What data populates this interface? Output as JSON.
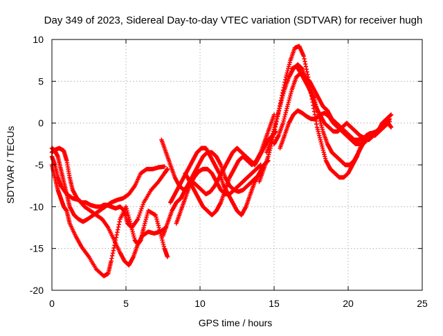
{
  "chart_data": {
    "type": "scatter",
    "title": "Day 349 of 2023, Sidereal Day-to-day VTEC variation (SDTVAR) for receiver hugh",
    "xlabel": "GPS time / hours",
    "ylabel": "SDTVAR / TECUs",
    "xlim": [
      0,
      25
    ],
    "ylim": [
      -20,
      10
    ],
    "xticks": [
      0,
      5,
      10,
      15,
      20,
      25
    ],
    "yticks": [
      -20,
      -15,
      -10,
      -5,
      0,
      5,
      10
    ],
    "xtick_labels": [
      "0",
      "5",
      "10",
      "15",
      "20",
      "25"
    ],
    "ytick_labels": [
      "-20",
      "-15",
      "-10",
      "-5",
      "0",
      "5",
      "10"
    ],
    "grid": true,
    "legend": "none",
    "marker": "+",
    "color": "#ff0000",
    "series": [
      {
        "x": [
          0.0,
          0.2,
          0.4,
          0.6,
          0.8,
          1.0,
          1.2,
          1.6,
          2.0,
          2.5,
          3.0,
          3.5,
          3.8,
          4.0,
          4.3,
          4.6,
          5.0,
          5.3,
          5.6,
          5.8,
          6.0,
          6.2,
          6.5,
          7.0,
          7.3,
          7.6,
          7.8
        ],
        "y": [
          -5.0,
          -6.5,
          -8.0,
          -9.0,
          -10.0,
          -10.5,
          -12.0,
          -13.5,
          -14.8,
          -16.0,
          -17.5,
          -18.3,
          -18.0,
          -16.5,
          -14.0,
          -11.5,
          -10.0,
          -12.0,
          -14.0,
          -14.5,
          -14.0,
          -12.5,
          -10.5,
          -11.0,
          -13.0,
          -15.0,
          -16.0
        ]
      },
      {
        "x": [
          0.0,
          0.2,
          0.5,
          0.8,
          1.0,
          1.2,
          1.4,
          1.7,
          2.0,
          2.3,
          2.6,
          3.0,
          3.3,
          3.5,
          3.7,
          4.0,
          4.3,
          4.6,
          4.9,
          5.1,
          5.4,
          5.8,
          6.2,
          6.7,
          7.2,
          7.6,
          7.8
        ],
        "y": [
          -3.5,
          -3.2,
          -3.0,
          -3.3,
          -4.5,
          -6.5,
          -8.0,
          -9.0,
          -9.5,
          -9.5,
          -9.8,
          -10.0,
          -10.0,
          -9.8,
          -9.8,
          -10.0,
          -10.2,
          -10.0,
          -10.5,
          -12.0,
          -12.5,
          -11.5,
          -9.5,
          -8.0,
          -7.0,
          -6.0,
          -5.5
        ]
      },
      {
        "x": [
          0.0,
          0.2,
          0.4,
          0.6,
          1.0,
          1.4,
          1.8,
          2.2,
          2.6,
          3.0,
          3.4,
          3.8,
          4.2,
          4.6,
          4.9,
          5.2,
          5.5,
          5.8,
          6.1,
          6.5,
          6.9,
          7.3,
          7.7
        ],
        "y": [
          -4.0,
          -5.0,
          -6.5,
          -7.5,
          -8.5,
          -9.0,
          -9.2,
          -10.0,
          -10.5,
          -11.0,
          -11.5,
          -12.5,
          -14.0,
          -15.5,
          -16.5,
          -17.0,
          -16.0,
          -14.5,
          -13.5,
          -13.0,
          -13.2,
          -13.0,
          -12.5
        ]
      },
      {
        "x": [
          0.0,
          0.2,
          0.4,
          0.6,
          0.8,
          1.0,
          1.2,
          1.5,
          1.8,
          2.1,
          2.4,
          2.8,
          3.2,
          3.6,
          4.0,
          4.4,
          4.8,
          5.2,
          5.6,
          6.0,
          6.4,
          6.8,
          7.2,
          7.6
        ],
        "y": [
          -3.0,
          -3.3,
          -4.0,
          -5.5,
          -7.0,
          -8.5,
          -10.0,
          -11.0,
          -11.5,
          -11.8,
          -11.5,
          -11.0,
          -10.5,
          -10.0,
          -9.5,
          -9.2,
          -9.0,
          -8.5,
          -7.5,
          -6.0,
          -5.5,
          -5.5,
          -5.3,
          -5.2
        ]
      },
      {
        "x": [
          7.4,
          7.7,
          8.0,
          8.3,
          8.6,
          8.9,
          9.2,
          9.5,
          9.8,
          10.1,
          10.4,
          10.7,
          11.0,
          11.3,
          11.6,
          11.9,
          12.2,
          12.5,
          12.8,
          13.1,
          13.4,
          13.7,
          14.0,
          14.3,
          14.6,
          14.9,
          15.1
        ],
        "y": [
          -2.0,
          -3.5,
          -5.0,
          -6.5,
          -7.5,
          -8.0,
          -7.5,
          -7.0,
          -7.5,
          -8.0,
          -8.5,
          -8.2,
          -7.5,
          -6.5,
          -5.5,
          -4.5,
          -3.5,
          -3.0,
          -3.5,
          -4.0,
          -4.5,
          -5.0,
          -4.0,
          -3.0,
          -2.0,
          -1.5,
          -1.0
        ]
      },
      {
        "x": [
          7.5,
          7.8,
          8.1,
          8.4,
          8.7,
          9.0,
          9.3,
          9.6,
          9.9,
          10.2,
          10.5,
          10.8,
          11.1,
          11.4,
          11.7,
          12.0,
          12.3,
          12.6,
          12.9,
          13.2,
          13.5,
          13.8,
          14.1
        ],
        "y": [
          -13.5,
          -12.0,
          -10.5,
          -9.5,
          -9.0,
          -8.0,
          -7.0,
          -6.0,
          -5.0,
          -4.0,
          -3.5,
          -3.5,
          -4.0,
          -5.0,
          -6.5,
          -7.5,
          -8.0,
          -8.2,
          -8.0,
          -7.5,
          -7.0,
          -6.5,
          -6.0
        ]
      },
      {
        "x": [
          8.0,
          8.3,
          8.6,
          8.9,
          9.2,
          9.5,
          9.8,
          10.1,
          10.4,
          10.7,
          11.0,
          11.3,
          11.6,
          11.9,
          12.2,
          12.5,
          12.8,
          13.1,
          13.4,
          13.7,
          14.0,
          14.3,
          14.6
        ],
        "y": [
          -9.5,
          -8.5,
          -7.5,
          -6.5,
          -5.5,
          -4.5,
          -3.5,
          -3.0,
          -3.0,
          -4.0,
          -5.0,
          -6.0,
          -7.5,
          -8.5,
          -9.5,
          -10.5,
          -11.0,
          -10.0,
          -8.5,
          -7.0,
          -6.0,
          -5.0,
          -4.5
        ]
      },
      {
        "x": [
          8.4,
          8.7,
          9.0,
          9.3,
          9.6,
          9.9,
          10.2,
          10.5,
          10.8,
          11.1,
          11.4,
          11.7,
          12.0,
          12.3,
          12.6,
          12.9,
          13.2,
          13.5,
          13.8,
          14.1
        ],
        "y": [
          -12.0,
          -10.5,
          -9.0,
          -7.5,
          -6.5,
          -5.8,
          -5.5,
          -5.5,
          -6.0,
          -7.0,
          -8.0,
          -8.5,
          -8.5,
          -8.0,
          -7.5,
          -7.0,
          -6.5,
          -6.0,
          -5.5,
          -5.0
        ]
      },
      {
        "x": [
          9.0,
          9.3,
          9.6,
          9.9,
          10.2,
          10.5,
          10.8,
          11.1,
          11.4,
          11.7,
          12.0,
          12.3,
          12.6,
          12.9,
          13.2,
          13.5,
          13.8,
          14.1,
          14.4,
          14.7,
          15.0
        ],
        "y": [
          -6.0,
          -7.0,
          -8.0,
          -9.0,
          -10.0,
          -10.5,
          -11.0,
          -10.5,
          -9.5,
          -8.0,
          -6.5,
          -5.5,
          -4.5,
          -4.0,
          -4.5,
          -5.0,
          -4.5,
          -3.5,
          -2.0,
          -0.5,
          1.0
        ]
      },
      {
        "x": [
          14.0,
          14.3,
          14.6,
          14.9,
          15.2,
          15.5,
          15.8,
          16.1,
          16.4,
          16.7,
          17.0,
          17.3,
          17.6,
          17.9,
          18.2,
          18.5,
          18.8,
          19.1,
          19.4,
          19.7,
          20.0,
          20.3,
          20.6,
          20.9,
          21.2,
          21.5,
          21.8,
          22.1,
          22.4,
          22.7,
          22.9
        ],
        "y": [
          -7.0,
          -5.5,
          -4.0,
          -2.0,
          0.5,
          3.0,
          5.5,
          7.5,
          9.0,
          9.2,
          8.0,
          5.5,
          2.5,
          -0.5,
          -2.5,
          -4.5,
          -5.5,
          -6.0,
          -6.5,
          -6.5,
          -6.0,
          -5.0,
          -4.0,
          -2.5,
          -1.5,
          -1.2,
          -1.5,
          -1.0,
          -0.5,
          0.0,
          -0.5
        ]
      },
      {
        "x": [
          14.5,
          14.8,
          15.1,
          15.4,
          15.7,
          16.0,
          16.3,
          16.6,
          16.9,
          17.2,
          17.5,
          17.8,
          18.1,
          18.4,
          18.7,
          19.0,
          19.3,
          19.6,
          19.9,
          20.2,
          20.5,
          20.8,
          21.1,
          21.4,
          21.7,
          22.0,
          22.3,
          22.6,
          22.9
        ],
        "y": [
          -3.5,
          -2.0,
          0.0,
          2.0,
          4.0,
          5.5,
          6.5,
          7.0,
          6.5,
          5.0,
          3.5,
          2.0,
          1.0,
          0.0,
          -0.5,
          -1.0,
          -1.0,
          -0.5,
          0.0,
          -0.5,
          -1.0,
          -1.5,
          -1.8,
          -2.0,
          -1.5,
          -1.0,
          0.0,
          0.5,
          1.0
        ]
      },
      {
        "x": [
          15.0,
          15.3,
          15.6,
          15.9,
          16.2,
          16.5,
          16.8,
          17.1,
          17.4,
          17.7,
          18.0,
          18.3,
          18.6,
          18.9,
          19.2,
          19.5,
          19.8,
          20.1,
          20.4,
          20.7,
          21.0,
          21.3,
          21.6,
          21.9,
          22.2,
          22.5,
          22.8
        ],
        "y": [
          -2.5,
          -1.5,
          0.0,
          2.0,
          4.0,
          5.5,
          6.0,
          5.5,
          5.0,
          4.0,
          3.0,
          2.0,
          1.5,
          0.5,
          0.0,
          -0.5,
          -1.0,
          -1.5,
          -2.0,
          -2.0,
          -1.8,
          -1.5,
          -1.2,
          -1.0,
          -0.5,
          0.0,
          0.5
        ]
      },
      {
        "x": [
          15.4,
          15.7,
          16.0,
          16.3,
          16.6,
          16.9,
          17.2,
          17.5,
          17.8,
          18.1,
          18.4,
          18.7,
          19.0,
          19.3,
          19.6,
          19.9,
          20.2,
          20.5,
          20.8,
          21.1
        ],
        "y": [
          -3.0,
          -1.5,
          0.0,
          1.0,
          1.5,
          1.2,
          0.8,
          0.5,
          0.5,
          1.0,
          1.2,
          0.8,
          0.0,
          -0.5,
          -1.0,
          -1.5,
          -2.0,
          -2.5,
          -2.5,
          -2.3
        ]
      },
      {
        "x": [
          16.2,
          16.5,
          16.8,
          17.1,
          17.4,
          17.7,
          18.0,
          18.3,
          18.6,
          18.9,
          19.2,
          19.5,
          19.8,
          20.1,
          20.4,
          20.7,
          21.0,
          21.3,
          21.6,
          21.9,
          22.2,
          22.5,
          22.8
        ],
        "y": [
          6.5,
          6.8,
          6.0,
          5.0,
          4.0,
          3.0,
          1.0,
          -1.0,
          -2.5,
          -3.5,
          -4.0,
          -4.5,
          -5.0,
          -5.0,
          -4.5,
          -3.5,
          -2.5,
          -2.0,
          -1.5,
          -1.0,
          -0.5,
          0.0,
          0.2
        ]
      }
    ]
  }
}
